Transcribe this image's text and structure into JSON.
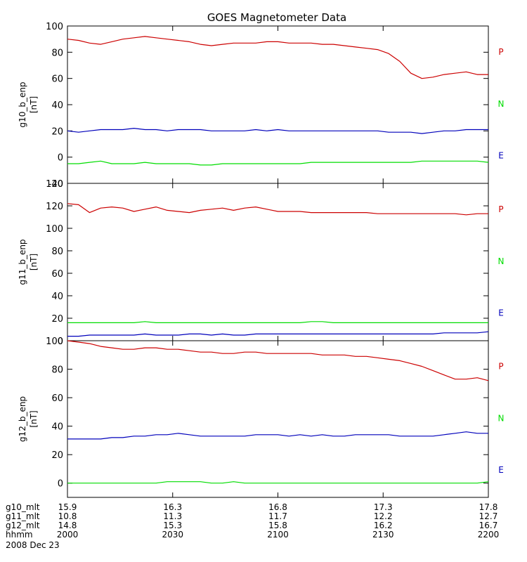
{
  "chart_data": {
    "type": "line",
    "title": "GOES Magnetometer Data",
    "date": "2008 Dec 23",
    "x_ticks": [
      "2000",
      "2030",
      "2100",
      "2130",
      "2200"
    ],
    "xlim": [
      "2000",
      "2200"
    ],
    "panels": [
      {
        "ylabel": "g10_b_enp",
        "units": "[nT]",
        "ylim": [
          -20,
          100
        ],
        "yticks": [
          -20,
          0,
          20,
          40,
          60,
          80,
          100
        ],
        "legend": [
          "P",
          "N",
          "E"
        ],
        "series": [
          {
            "name": "P",
            "color": "#cc0000",
            "values": [
              90,
              89,
              87,
              86,
              88,
              90,
              91,
              92,
              91,
              90,
              89,
              88,
              86,
              85,
              86,
              87,
              87,
              87,
              88,
              88,
              87,
              87,
              87,
              86,
              86,
              85,
              84,
              83,
              82,
              79,
              73,
              64,
              60,
              61,
              63,
              64,
              65,
              63,
              63
            ]
          },
          {
            "name": "N",
            "color": "#00dd00",
            "values": [
              -5,
              -5,
              -4,
              -3,
              -5,
              -5,
              -5,
              -4,
              -5,
              -5,
              -5,
              -5,
              -6,
              -6,
              -5,
              -5,
              -5,
              -5,
              -5,
              -5,
              -5,
              -5,
              -4,
              -4,
              -4,
              -4,
              -4,
              -4,
              -4,
              -4,
              -4,
              -4,
              -3,
              -3,
              -3,
              -3,
              -3,
              -3,
              -4
            ]
          },
          {
            "name": "E",
            "color": "#0000bb",
            "values": [
              20,
              19,
              20,
              21,
              21,
              21,
              22,
              21,
              21,
              20,
              21,
              21,
              21,
              20,
              20,
              20,
              20,
              21,
              20,
              21,
              20,
              20,
              20,
              20,
              20,
              20,
              20,
              20,
              20,
              19,
              19,
              19,
              18,
              19,
              20,
              20,
              21,
              21,
              21
            ]
          }
        ]
      },
      {
        "ylabel": "g11_b_enp",
        "units": "[nT]",
        "ylim": [
          0,
          140
        ],
        "yticks": [
          0,
          20,
          40,
          60,
          80,
          100,
          120,
          140
        ],
        "legend": [
          "P",
          "N",
          "E"
        ],
        "series": [
          {
            "name": "P",
            "color": "#cc0000",
            "values": [
              122,
              121,
              114,
              118,
              119,
              118,
              115,
              117,
              119,
              116,
              115,
              114,
              116,
              117,
              118,
              116,
              118,
              119,
              117,
              115,
              115,
              115,
              114,
              114,
              114,
              114,
              114,
              114,
              113,
              113,
              113,
              113,
              113,
              113,
              113,
              113,
              112,
              113,
              113
            ]
          },
          {
            "name": "N",
            "color": "#00dd00",
            "values": [
              16,
              16,
              16,
              16,
              16,
              16,
              16,
              17,
              16,
              16,
              16,
              16,
              16,
              16,
              16,
              16,
              16,
              16,
              16,
              16,
              16,
              16,
              17,
              17,
              16,
              16,
              16,
              16,
              16,
              16,
              16,
              16,
              16,
              16,
              16,
              16,
              16,
              16,
              16
            ]
          },
          {
            "name": "E",
            "color": "#0000bb",
            "values": [
              4,
              4,
              5,
              5,
              5,
              5,
              5,
              6,
              5,
              5,
              5,
              6,
              6,
              5,
              6,
              5,
              5,
              6,
              6,
              6,
              6,
              6,
              6,
              6,
              6,
              6,
              6,
              6,
              6,
              6,
              6,
              6,
              6,
              6,
              7,
              7,
              7,
              7,
              8
            ]
          }
        ]
      },
      {
        "ylabel": "g12_b_enp",
        "units": "[nT]",
        "ylim": [
          -10,
          100
        ],
        "yticks": [
          0,
          20,
          40,
          60,
          80,
          100
        ],
        "legend": [
          "P",
          "N",
          "E"
        ],
        "series": [
          {
            "name": "P",
            "color": "#cc0000",
            "values": [
              100,
              99,
              98,
              96,
              95,
              94,
              94,
              95,
              95,
              94,
              94,
              93,
              92,
              92,
              91,
              91,
              92,
              92,
              91,
              91,
              91,
              91,
              91,
              90,
              90,
              90,
              89,
              89,
              88,
              87,
              86,
              84,
              82,
              79,
              76,
              73,
              73,
              74,
              72
            ]
          },
          {
            "name": "N",
            "color": "#00dd00",
            "values": [
              0,
              0,
              0,
              0,
              0,
              0,
              0,
              0,
              0,
              1,
              1,
              1,
              1,
              0,
              0,
              1,
              0,
              0,
              0,
              0,
              0,
              0,
              0,
              0,
              0,
              0,
              0,
              0,
              0,
              0,
              0,
              0,
              0,
              0,
              0,
              0,
              0,
              0,
              1
            ]
          },
          {
            "name": "E",
            "color": "#0000bb",
            "values": [
              31,
              31,
              31,
              31,
              32,
              32,
              33,
              33,
              34,
              34,
              35,
              34,
              33,
              33,
              33,
              33,
              33,
              34,
              34,
              34,
              33,
              34,
              33,
              34,
              33,
              33,
              34,
              34,
              34,
              34,
              33,
              33,
              33,
              33,
              34,
              35,
              36,
              35,
              35
            ]
          }
        ]
      }
    ],
    "mlt_rows": [
      {
        "label": "g10_mlt",
        "values": [
          "15.9",
          "16.3",
          "16.8",
          "17.3",
          "17.8"
        ]
      },
      {
        "label": "g11_mlt",
        "values": [
          "10.8",
          "11.3",
          "11.7",
          "12.2",
          "12.7"
        ]
      },
      {
        "label": "g12_mlt",
        "values": [
          "14.8",
          "15.3",
          "15.8",
          "16.2",
          "16.7"
        ]
      },
      {
        "label": "hhmm",
        "values": [
          "2000",
          "2030",
          "2100",
          "2130",
          "2200"
        ]
      }
    ]
  }
}
